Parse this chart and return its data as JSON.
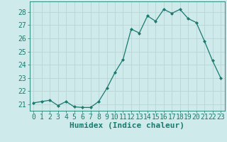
{
  "xlabel": "Humidex (Indice chaleur)",
  "x": [
    0,
    1,
    2,
    3,
    4,
    5,
    6,
    7,
    8,
    9,
    10,
    11,
    12,
    13,
    14,
    15,
    16,
    17,
    18,
    19,
    20,
    21,
    22,
    23
  ],
  "y": [
    21.1,
    21.2,
    21.3,
    20.9,
    21.2,
    20.8,
    20.75,
    20.75,
    21.2,
    22.2,
    23.4,
    24.4,
    26.7,
    26.4,
    27.7,
    27.3,
    28.2,
    27.9,
    28.2,
    27.5,
    27.2,
    25.8,
    24.3,
    23.0
  ],
  "line_color": "#1a7a6e",
  "marker": "D",
  "marker_size": 2.0,
  "bg_color": "#ceeaea",
  "grid_color": "#b8d4d4",
  "ylim": [
    20.5,
    28.8
  ],
  "yticks": [
    21,
    22,
    23,
    24,
    25,
    26,
    27,
    28
  ],
  "tick_label_color": "#1a7a6e",
  "xlabel_color": "#1a7a6e",
  "xlabel_fontsize": 8,
  "tick_fontsize": 7,
  "linewidth": 0.9
}
